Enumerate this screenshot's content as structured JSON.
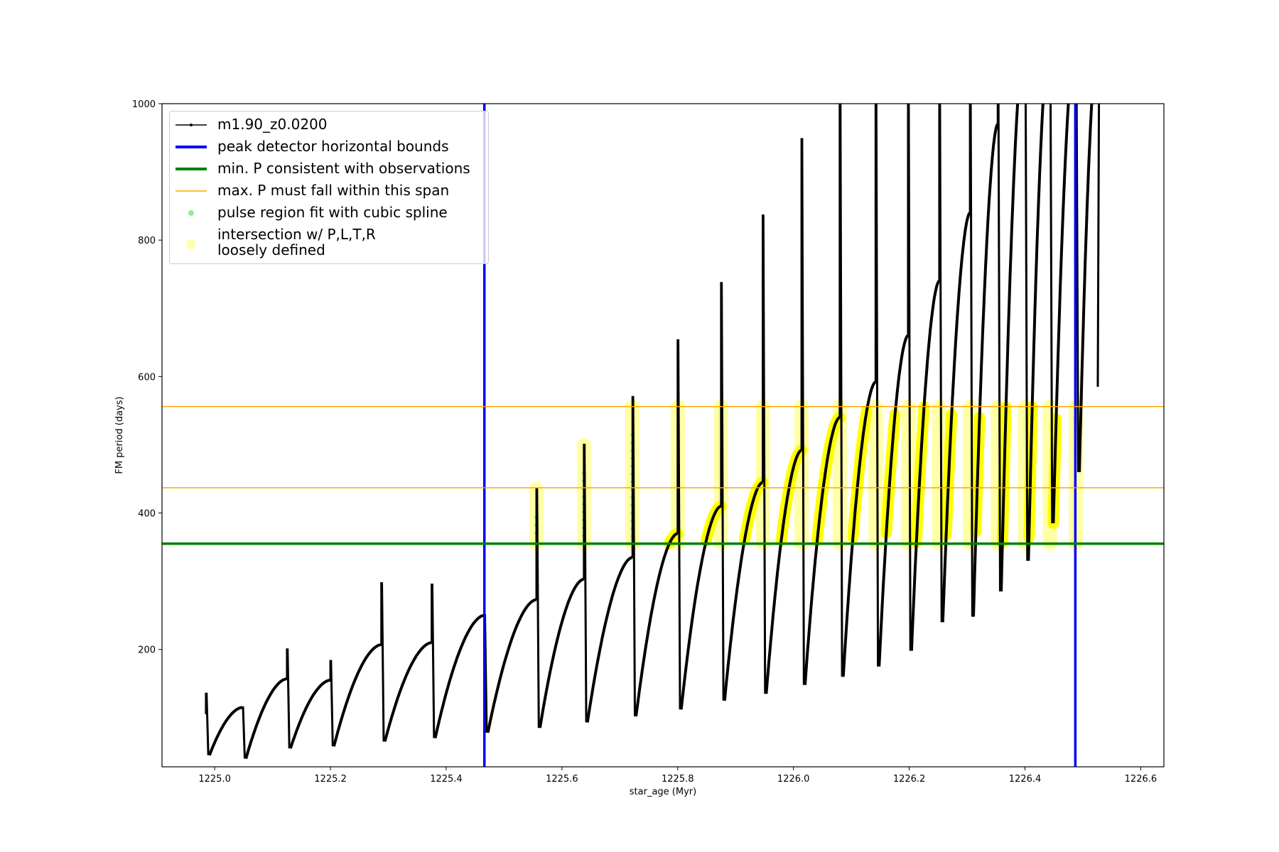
{
  "chart_data": {
    "type": "line",
    "xlabel": "star_age (Myr)",
    "ylabel": "FM period (days)",
    "xlim": [
      1224.909,
      1226.64
    ],
    "ylim": [
      28,
      1000
    ],
    "xticks": [
      "1225.0",
      "1225.2",
      "1225.4",
      "1225.6",
      "1225.8",
      "1226.0",
      "1226.2",
      "1226.4",
      "1226.6"
    ],
    "xtick_values": [
      1225.0,
      1225.2,
      1225.4,
      1225.6,
      1225.8,
      1226.0,
      1226.2,
      1226.4,
      1226.6
    ],
    "yticks": [
      "200",
      "400",
      "600",
      "800",
      "1000"
    ],
    "ytick_values": [
      200,
      400,
      600,
      800,
      1000
    ],
    "legend_placement": "top-left",
    "legend": [
      "m1.90_z0.0200",
      "peak detector horizontal bounds",
      "min. P consistent with observations",
      "max. P must fall within this span",
      "pulse region fit with cubic spline",
      "intersection w/ P,L,T,R",
      "loosely defined"
    ],
    "series": {
      "name": "m1.90_z0.0200",
      "pulse_times": [
        1224.985,
        1225.048,
        1225.125,
        1225.2,
        1225.288,
        1225.375,
        1225.466,
        1225.556,
        1225.638,
        1225.722,
        1225.8,
        1225.875,
        1225.947,
        1226.014,
        1226.08,
        1226.142,
        1226.198,
        1226.252,
        1226.305,
        1226.353,
        1226.4,
        1226.443,
        1226.488,
        1226.527
      ],
      "spike_max": [
        135,
        115,
        200,
        183,
        297,
        295,
        250,
        435,
        500,
        570,
        653,
        737,
        836,
        948,
        1050,
        1050,
        1050,
        1050,
        1050,
        1050,
        1050,
        1050,
        1050,
        1050
      ],
      "post_pulse_min": [
        45,
        40,
        55,
        58,
        65,
        70,
        78,
        85,
        93,
        102,
        112,
        125,
        135,
        148,
        160,
        175,
        198,
        240,
        248,
        285,
        330,
        385,
        460,
        585
      ],
      "pre_pulse_peak": [
        115,
        157,
        155,
        207,
        210,
        250,
        273,
        303,
        335,
        370,
        410,
        445,
        492,
        540,
        592,
        660,
        740,
        840,
        970,
        1100,
        1100,
        1100,
        1100,
        1000
      ]
    },
    "peak_detector_bounds": [
      1225.466,
      1226.487
    ],
    "min_P": 355,
    "max_P_span": [
      437,
      556
    ],
    "colors": {
      "series": "#000000",
      "bounds": "#0000ff",
      "minP": "#008000",
      "maxP": "#ffa500",
      "spline": "#90ee90",
      "intersection": "#ffff00"
    }
  }
}
